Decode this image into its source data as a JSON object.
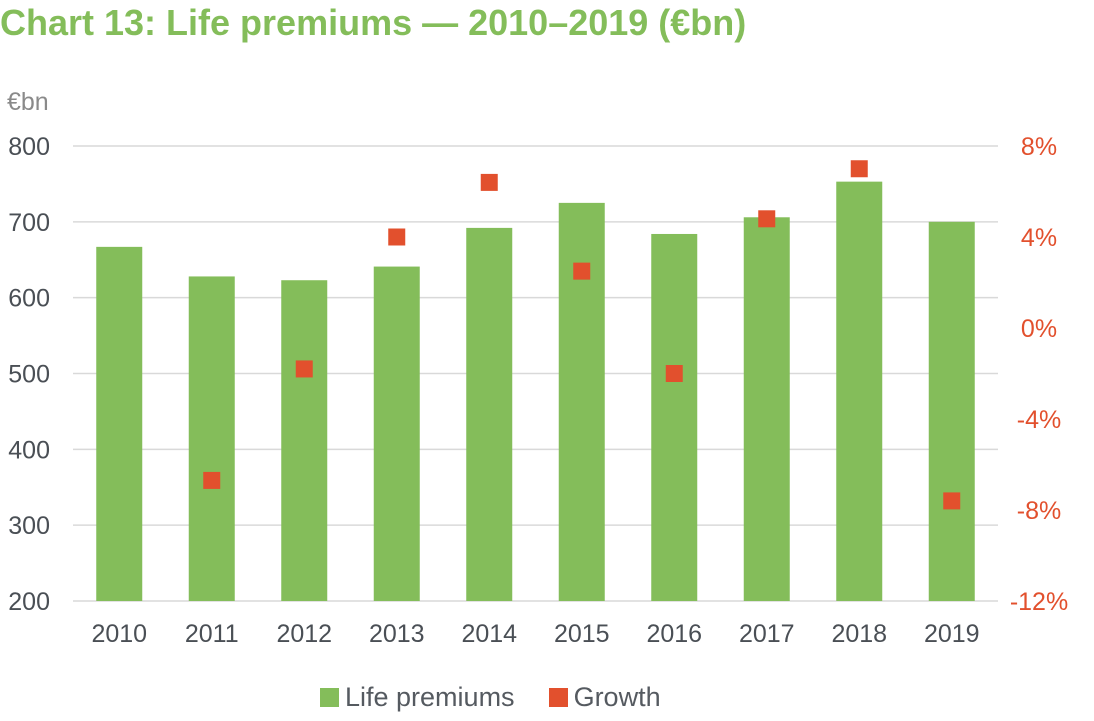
{
  "title": "Chart 13: Life premiums — 2010–2019 (€bn)",
  "colors": {
    "title": "#84bd5a",
    "bars": "#84bd5a",
    "growth": "#e2502d",
    "axis_text": "#4a4f55",
    "right_axis_text": "#e2502d",
    "unit_text": "#8a8a8a",
    "grid": "#d9d9d9"
  },
  "chart_data": {
    "type": "bar",
    "title": "Chart 13: Life premiums — 2010–2019 (€bn)",
    "y_unit_label": "€bn",
    "categories": [
      "2010",
      "2011",
      "2012",
      "2013",
      "2014",
      "2015",
      "2016",
      "2017",
      "2018",
      "2019"
    ],
    "ylim": [
      200,
      800
    ],
    "yticks": [
      "200",
      "300",
      "400",
      "500",
      "600",
      "700",
      "800"
    ],
    "y2lim": [
      -12,
      8
    ],
    "y2ticks": [
      "-12%",
      "-8%",
      "-4%",
      "0%",
      "4%",
      "8%"
    ],
    "grid": true,
    "legend_position": "bottom",
    "series": [
      {
        "name": "Life premiums",
        "type": "bar",
        "axis": "left",
        "values": [
          667,
          628,
          623,
          641,
          692,
          725,
          684,
          706,
          753,
          700
        ]
      },
      {
        "name": "Growth",
        "type": "scatter",
        "axis": "right",
        "values": [
          null,
          -6.7,
          -1.8,
          4.0,
          6.4,
          2.5,
          -2.0,
          4.8,
          7.0,
          -7.6
        ]
      }
    ]
  }
}
